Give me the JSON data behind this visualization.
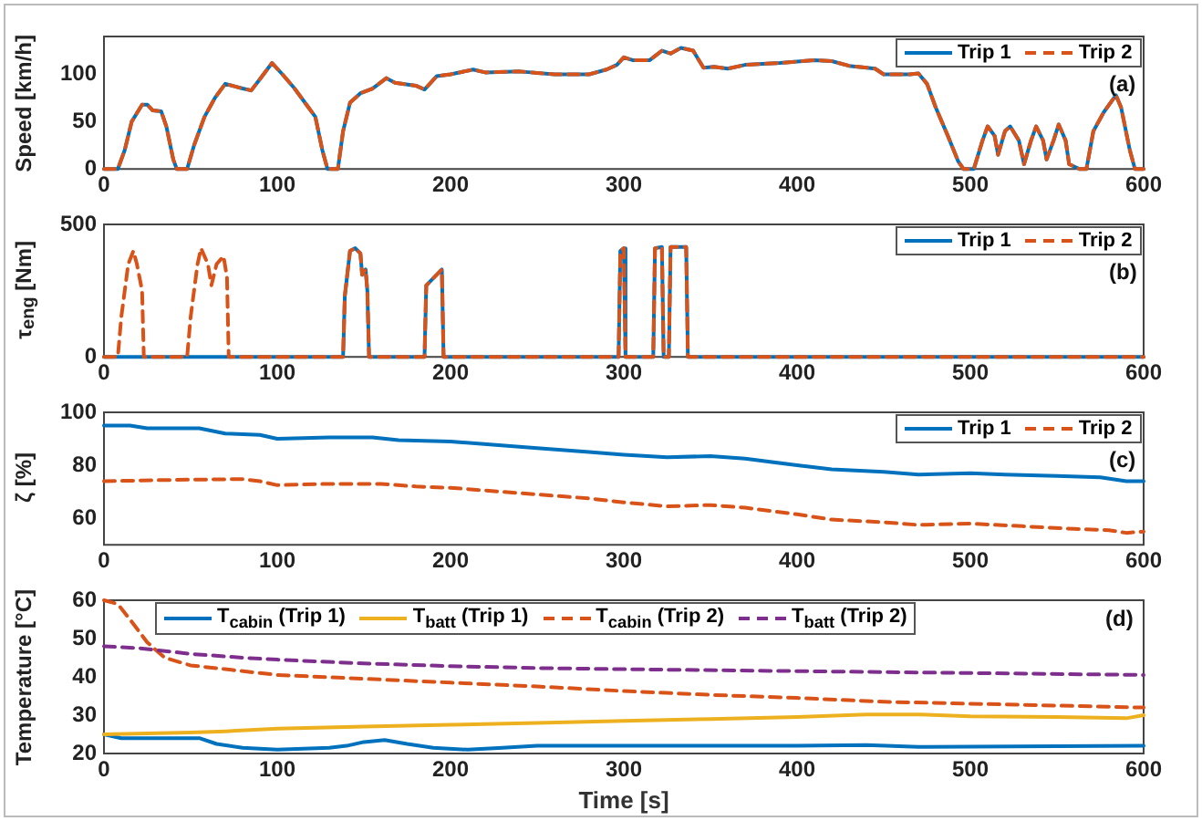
{
  "chart_data": [
    {
      "type": "line",
      "ylabel": "Speed [km/h]",
      "xlim": [
        0,
        600
      ],
      "xticks": [
        0,
        100,
        200,
        300,
        400,
        500,
        600
      ],
      "ylim": [
        0,
        140
      ],
      "yticks": [
        0,
        50,
        100
      ],
      "legend": "top right",
      "marker": "none",
      "annotations": [
        "(a)"
      ],
      "series": [
        {
          "name": "Trip 1",
          "color": "#0072bd",
          "line_style": "solid",
          "x": [
            0,
            8,
            12,
            16,
            22,
            25,
            28,
            33,
            36,
            40,
            42,
            48,
            52,
            58,
            64,
            70,
            80,
            85,
            90,
            97,
            103,
            110,
            118,
            122,
            126,
            129,
            135,
            138,
            142,
            148,
            155,
            163,
            168,
            180,
            185,
            192,
            200,
            213,
            220,
            240,
            260,
            280,
            290,
            296,
            300,
            305,
            315,
            322,
            327,
            333,
            340,
            346,
            352,
            360,
            370,
            390,
            410,
            420,
            430,
            445,
            450,
            465,
            470,
            475,
            480,
            487,
            493,
            496,
            502,
            507,
            510,
            514,
            516,
            520,
            523,
            528,
            531,
            535,
            538,
            542,
            544,
            548,
            551,
            555,
            557,
            563,
            567,
            571,
            577,
            584,
            587,
            592,
            595,
            600
          ],
          "values": [
            0,
            0,
            20,
            50,
            68,
            68,
            62,
            61,
            45,
            10,
            0,
            0,
            25,
            55,
            75,
            90,
            85,
            83,
            95,
            112,
            100,
            85,
            65,
            55,
            20,
            0,
            0,
            40,
            70,
            80,
            85,
            96,
            91,
            88,
            84,
            98,
            100,
            105,
            102,
            103,
            100,
            100,
            105,
            110,
            118,
            115,
            115,
            125,
            122,
            128,
            125,
            107,
            108,
            106,
            110,
            112,
            115,
            114,
            109,
            106,
            100,
            100,
            101,
            90,
            65,
            35,
            8,
            0,
            0,
            30,
            45,
            35,
            15,
            40,
            45,
            30,
            5,
            30,
            45,
            30,
            10,
            30,
            47,
            30,
            5,
            0,
            0,
            40,
            60,
            78,
            65,
            20,
            0,
            0
          ]
        },
        {
          "name": "Trip 2",
          "color": "#d95319",
          "line_style": "dashed",
          "x": [
            0,
            8,
            12,
            16,
            22,
            25,
            28,
            33,
            36,
            40,
            42,
            48,
            52,
            58,
            64,
            70,
            80,
            85,
            90,
            97,
            103,
            110,
            118,
            122,
            126,
            129,
            135,
            138,
            142,
            148,
            155,
            163,
            168,
            180,
            185,
            192,
            200,
            213,
            220,
            240,
            260,
            280,
            290,
            296,
            300,
            305,
            315,
            322,
            327,
            333,
            340,
            346,
            352,
            360,
            370,
            390,
            410,
            420,
            430,
            445,
            450,
            465,
            470,
            475,
            480,
            487,
            493,
            496,
            502,
            507,
            510,
            514,
            516,
            520,
            523,
            528,
            531,
            535,
            538,
            542,
            544,
            548,
            551,
            555,
            557,
            563,
            567,
            571,
            577,
            584,
            587,
            592,
            595,
            600
          ],
          "values": [
            0,
            0,
            20,
            50,
            68,
            68,
            62,
            61,
            45,
            10,
            0,
            0,
            25,
            55,
            75,
            90,
            85,
            83,
            95,
            112,
            100,
            85,
            65,
            55,
            20,
            0,
            0,
            40,
            70,
            80,
            85,
            96,
            91,
            88,
            84,
            98,
            100,
            105,
            102,
            103,
            100,
            100,
            105,
            110,
            118,
            115,
            115,
            125,
            122,
            128,
            125,
            107,
            108,
            106,
            110,
            112,
            115,
            114,
            109,
            106,
            100,
            100,
            101,
            90,
            65,
            35,
            8,
            0,
            0,
            30,
            45,
            35,
            15,
            40,
            45,
            30,
            5,
            30,
            45,
            30,
            10,
            30,
            47,
            30,
            5,
            0,
            0,
            40,
            60,
            78,
            65,
            20,
            0,
            0
          ]
        }
      ]
    },
    {
      "type": "line",
      "ylabel": "τ$_{eng}$ [Nm]",
      "xlim": [
        0,
        600
      ],
      "xticks": [
        0,
        100,
        200,
        300,
        400,
        500,
        600
      ],
      "ylim": [
        0,
        500
      ],
      "yticks": [
        0,
        500
      ],
      "legend": "top right",
      "marker": "none",
      "annotations": [
        "(b)"
      ],
      "series": [
        {
          "name": "Trip 1",
          "color": "#0072bd",
          "line_style": "solid",
          "x": [
            0,
            138,
            139,
            142,
            145,
            148,
            149,
            151,
            152,
            153,
            185,
            186,
            195,
            196,
            297,
            298,
            300,
            301,
            317,
            318,
            322,
            323,
            326,
            327,
            336,
            337,
            600
          ],
          "values": [
            0,
            0,
            230,
            400,
            410,
            390,
            310,
            330,
            250,
            0,
            0,
            270,
            330,
            0,
            0,
            400,
            410,
            0,
            0,
            410,
            415,
            0,
            0,
            415,
            415,
            0,
            0
          ]
        },
        {
          "name": "Trip 2",
          "color": "#d95319",
          "line_style": "dashed",
          "x": [
            0,
            8,
            10,
            14,
            17,
            19,
            22,
            23,
            48,
            50,
            54,
            56,
            60,
            62,
            65,
            69,
            71,
            72,
            138,
            139,
            142,
            145,
            148,
            149,
            151,
            152,
            153,
            185,
            186,
            195,
            196,
            297,
            298,
            300,
            301,
            317,
            318,
            322,
            323,
            326,
            327,
            336,
            337,
            600
          ],
          "values": [
            0,
            0,
            150,
            350,
            400,
            350,
            250,
            0,
            0,
            150,
            350,
            410,
            350,
            270,
            350,
            380,
            300,
            0,
            0,
            230,
            400,
            410,
            390,
            310,
            330,
            250,
            0,
            0,
            270,
            330,
            0,
            0,
            400,
            410,
            0,
            0,
            410,
            415,
            0,
            0,
            415,
            415,
            0,
            0
          ]
        }
      ]
    },
    {
      "type": "line",
      "ylabel": "ζ [%]",
      "xlim": [
        0,
        600
      ],
      "xticks": [
        0,
        100,
        200,
        300,
        400,
        500,
        600
      ],
      "ylim": [
        50,
        100
      ],
      "yticks": [
        60,
        80,
        100
      ],
      "legend": "top right",
      "marker": "none",
      "annotations": [
        "(c)"
      ],
      "series": [
        {
          "name": "Trip 1",
          "color": "#0072bd",
          "line_style": "solid",
          "x": [
            0,
            15,
            25,
            40,
            55,
            70,
            90,
            100,
            130,
            155,
            170,
            200,
            250,
            280,
            300,
            325,
            350,
            370,
            400,
            420,
            450,
            470,
            500,
            520,
            550,
            575,
            590,
            600
          ],
          "values": [
            95,
            95,
            94,
            94,
            94,
            92,
            91.5,
            90,
            90.5,
            90.5,
            89.5,
            89,
            86.5,
            85,
            84,
            83,
            83.5,
            82.5,
            80,
            78.5,
            77.5,
            76.5,
            77,
            76.5,
            76,
            75.5,
            74,
            74
          ]
        },
        {
          "name": "Trip 2",
          "color": "#d95319",
          "line_style": "dashed",
          "x": [
            0,
            40,
            80,
            90,
            100,
            130,
            160,
            180,
            200,
            250,
            280,
            300,
            325,
            350,
            370,
            400,
            420,
            450,
            470,
            500,
            530,
            560,
            580,
            590,
            600
          ],
          "values": [
            74,
            74.5,
            74.8,
            74,
            72.5,
            73,
            73,
            72,
            71.5,
            69,
            67.5,
            66,
            64.5,
            65,
            64,
            61.5,
            59.5,
            58.5,
            57.5,
            58,
            57,
            56,
            55.5,
            54.5,
            55
          ]
        }
      ]
    },
    {
      "type": "line",
      "xlabel": "Time [s]",
      "ylabel": "Temperature [°C]",
      "xlim": [
        0,
        600
      ],
      "xticks": [
        0,
        100,
        200,
        300,
        400,
        500,
        600
      ],
      "ylim": [
        20,
        60
      ],
      "yticks": [
        20,
        30,
        40,
        50,
        60
      ],
      "legend": "top",
      "marker": "none",
      "annotations": [
        "(d)"
      ],
      "series": [
        {
          "name": "T$_{cabin}$ (Trip 1)",
          "color": "#0072bd",
          "line_style": "solid",
          "x": [
            0,
            10,
            30,
            55,
            65,
            80,
            100,
            130,
            140,
            150,
            162,
            175,
            190,
            210,
            230,
            250,
            300,
            400,
            440,
            470,
            500,
            600
          ],
          "values": [
            25,
            24,
            24,
            24,
            22.5,
            21.5,
            21,
            21.5,
            22,
            23,
            23.5,
            22.5,
            21.5,
            21,
            21.5,
            22,
            22,
            22,
            22.2,
            21.7,
            21.8,
            22
          ]
        },
        {
          "name": "T$_{batt}$ (Trip 1)",
          "color": "#edb120",
          "line_style": "solid",
          "x": [
            0,
            50,
            70,
            100,
            150,
            200,
            250,
            300,
            350,
            400,
            440,
            470,
            500,
            550,
            590,
            600
          ],
          "values": [
            25,
            25.5,
            25.8,
            26.5,
            27,
            27.5,
            28,
            28.5,
            29,
            29.5,
            30.2,
            30.2,
            29.7,
            29.5,
            29.2,
            30
          ]
        },
        {
          "name": "T$_{cabin}$ (Trip 2)",
          "color": "#d95319",
          "line_style": "dashed",
          "x": [
            0,
            8,
            15,
            25,
            35,
            50,
            70,
            100,
            150,
            200,
            250,
            300,
            350,
            400,
            450,
            500,
            550,
            600
          ],
          "values": [
            60,
            59,
            55,
            49,
            45,
            43,
            42,
            40.5,
            39.5,
            38.5,
            37.5,
            36.3,
            35.3,
            34.5,
            33.5,
            33,
            32.5,
            32
          ]
        },
        {
          "name": "T$_{batt}$ (Trip 2)",
          "color": "#7e2f8e",
          "line_style": "dashed",
          "x": [
            0,
            20,
            50,
            80,
            100,
            150,
            200,
            250,
            300,
            400,
            500,
            600
          ],
          "values": [
            48,
            47.5,
            46,
            45,
            44.5,
            43.5,
            42.8,
            42.3,
            42,
            41.5,
            41,
            40.5
          ]
        }
      ]
    }
  ]
}
